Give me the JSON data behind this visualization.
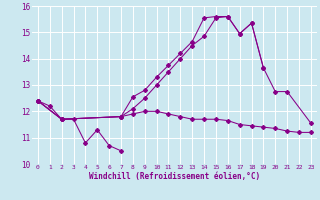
{
  "xlabel": "Windchill (Refroidissement éolien,°C)",
  "bg_color": "#cce8f0",
  "grid_color": "#ffffff",
  "line_color": "#880088",
  "xlim": [
    -0.5,
    23.5
  ],
  "ylim": [
    10,
    16
  ],
  "yticks": [
    10,
    11,
    12,
    13,
    14,
    15,
    16
  ],
  "xticks": [
    0,
    1,
    2,
    3,
    4,
    5,
    6,
    7,
    8,
    9,
    10,
    11,
    12,
    13,
    14,
    15,
    16,
    17,
    18,
    19,
    20,
    21,
    22,
    23
  ],
  "series": [
    {
      "x": [
        0,
        1,
        2,
        3,
        4,
        5,
        6,
        7
      ],
      "y": [
        12.4,
        12.2,
        11.7,
        11.7,
        10.8,
        11.3,
        10.7,
        10.5
      ]
    },
    {
      "x": [
        0,
        2,
        7,
        8,
        9,
        10,
        11,
        12,
        13,
        14,
        15,
        16,
        17,
        18,
        19,
        20,
        21,
        22,
        23
      ],
      "y": [
        12.4,
        11.7,
        11.8,
        11.9,
        12.0,
        12.0,
        11.9,
        11.8,
        11.7,
        11.7,
        11.7,
        11.65,
        11.5,
        11.45,
        11.4,
        11.35,
        11.25,
        11.2,
        11.2
      ]
    },
    {
      "x": [
        0,
        2,
        7,
        8,
        9,
        10,
        11,
        12,
        13,
        14,
        15,
        16,
        17,
        18,
        19
      ],
      "y": [
        12.4,
        11.7,
        11.8,
        12.1,
        12.5,
        13.0,
        13.5,
        14.0,
        14.5,
        14.85,
        15.55,
        15.6,
        14.95,
        15.35,
        13.65
      ]
    },
    {
      "x": [
        0,
        2,
        7,
        8,
        9,
        10,
        11,
        12,
        13,
        14,
        15,
        16,
        17,
        18,
        19,
        20,
        21,
        23
      ],
      "y": [
        12.4,
        11.7,
        11.8,
        12.55,
        12.8,
        13.3,
        13.75,
        14.2,
        14.65,
        15.55,
        15.6,
        15.6,
        14.95,
        15.35,
        13.65,
        12.75,
        12.75,
        11.55
      ]
    }
  ]
}
